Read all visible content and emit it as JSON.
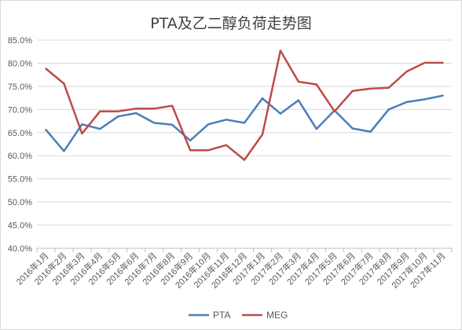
{
  "chart_data": {
    "type": "line",
    "title": "PTA及乙二醇负荷走势图",
    "categories": [
      "2016年1月",
      "2016年2月",
      "2016年3月",
      "2016年4月",
      "2016年5月",
      "2016年6月",
      "2016年7月",
      "2016年8月",
      "2016年9月",
      "2016年10月",
      "2016年11月",
      "2016年12月",
      "2017年1月",
      "2017年2月",
      "2017年3月",
      "2017年4月",
      "2017年5月",
      "2017年6月",
      "2017年7月",
      "2017年8月",
      "2017年9月",
      "2017年10月",
      "2017年11月"
    ],
    "series": [
      {
        "name": "PTA",
        "color": "#4a7ebb",
        "values": [
          65.6,
          61.0,
          66.8,
          65.8,
          68.5,
          69.2,
          67.1,
          66.7,
          63.3,
          66.8,
          67.8,
          67.1,
          72.4,
          69.1,
          72.0,
          65.8,
          69.8,
          65.9,
          65.2,
          70.0,
          71.6,
          72.2,
          73.0
        ]
      },
      {
        "name": "MEG",
        "color": "#be4b48",
        "values": [
          78.8,
          75.6,
          64.8,
          69.6,
          69.6,
          70.2,
          70.2,
          70.8,
          61.2,
          61.2,
          62.3,
          59.1,
          64.6,
          82.7,
          76.0,
          75.4,
          69.6,
          74.0,
          74.5,
          74.7,
          78.2,
          80.1,
          80.1
        ]
      }
    ],
    "y_ticks": [
      "40.0%",
      "45.0%",
      "50.0%",
      "55.0%",
      "60.0%",
      "65.0%",
      "70.0%",
      "75.0%",
      "80.0%",
      "85.0%"
    ],
    "ylim": [
      40,
      85
    ],
    "grid": "horizontal",
    "legend_position": "bottom"
  }
}
